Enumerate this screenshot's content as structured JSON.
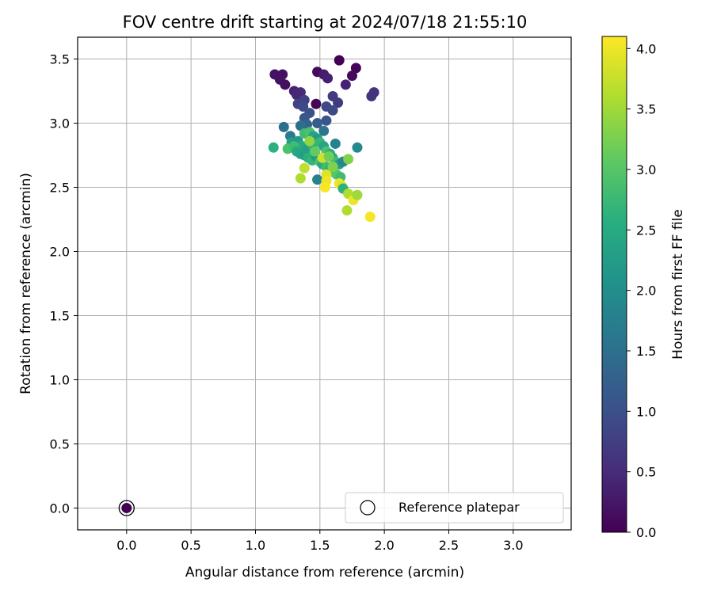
{
  "chart_data": {
    "type": "scatter",
    "title": "FOV centre drift starting at 2024/07/18 21:55:10",
    "xlabel": "Angular distance from reference (arcmin)",
    "ylabel": "Rotation from reference (arcmin)",
    "xlim": [
      -0.38,
      3.45
    ],
    "ylim": [
      -0.17,
      3.67
    ],
    "xticks": [
      "0.0",
      "0.5",
      "1.0",
      "1.5",
      "2.0",
      "2.5",
      "3.0"
    ],
    "yticks": [
      "0.0",
      "0.5",
      "1.0",
      "1.5",
      "2.0",
      "2.5",
      "3.0",
      "3.5"
    ],
    "grid": true,
    "legend": {
      "position": "lower-right",
      "label": "Reference platepar",
      "marker": "hollow-circle"
    },
    "reference": {
      "x": 0.0,
      "y": 0.0,
      "hours": 0.0
    },
    "colorbar": {
      "label": "Hours from first FF file",
      "colormap": "viridis",
      "range": [
        0.0,
        4.1
      ],
      "ticks": [
        "0.0",
        "0.5",
        "1.0",
        "1.5",
        "2.0",
        "2.5",
        "3.0",
        "3.5",
        "4.0"
      ]
    },
    "points": [
      [
        1.65,
        3.49,
        0.0
      ],
      [
        1.78,
        3.43,
        0.05
      ],
      [
        1.75,
        3.37,
        0.1
      ],
      [
        1.48,
        3.4,
        0.1
      ],
      [
        1.21,
        3.38,
        0.15
      ],
      [
        1.15,
        3.38,
        0.2
      ],
      [
        1.19,
        3.34,
        0.2
      ],
      [
        1.23,
        3.3,
        0.15
      ],
      [
        1.53,
        3.38,
        0.3
      ],
      [
        1.56,
        3.35,
        0.35
      ],
      [
        1.7,
        3.3,
        0.4
      ],
      [
        1.3,
        3.25,
        0.4
      ],
      [
        1.35,
        3.24,
        0.5
      ],
      [
        1.32,
        3.22,
        0.45
      ],
      [
        1.92,
        3.24,
        0.6
      ],
      [
        1.9,
        3.21,
        0.6
      ],
      [
        1.6,
        3.21,
        0.7
      ],
      [
        1.64,
        3.16,
        0.7
      ],
      [
        1.47,
        3.15,
        0.05
      ],
      [
        1.33,
        3.15,
        0.8
      ],
      [
        1.38,
        3.18,
        0.8
      ],
      [
        1.37,
        3.13,
        0.9
      ],
      [
        1.55,
        3.13,
        0.9
      ],
      [
        1.6,
        3.1,
        0.9
      ],
      [
        1.42,
        3.08,
        1.0
      ],
      [
        1.38,
        3.04,
        1.1
      ],
      [
        1.55,
        3.02,
        1.1
      ],
      [
        1.48,
        3.0,
        1.2
      ],
      [
        1.4,
        2.99,
        1.3
      ],
      [
        1.22,
        2.97,
        1.5
      ],
      [
        1.35,
        2.98,
        1.5
      ],
      [
        1.53,
        2.94,
        1.6
      ],
      [
        1.27,
        2.9,
        1.7
      ],
      [
        1.62,
        2.84,
        1.8
      ],
      [
        1.79,
        2.81,
        1.9
      ],
      [
        1.14,
        2.81,
        2.6
      ],
      [
        1.28,
        2.85,
        2.3
      ],
      [
        1.33,
        2.86,
        2.2
      ],
      [
        1.36,
        2.82,
        2.5
      ],
      [
        1.4,
        2.8,
        2.3
      ],
      [
        1.44,
        2.83,
        2.6
      ],
      [
        1.38,
        2.92,
        2.8
      ],
      [
        1.42,
        2.93,
        2.9
      ],
      [
        1.45,
        2.9,
        2.4
      ],
      [
        1.48,
        2.88,
        2.2
      ],
      [
        1.5,
        2.85,
        2.7
      ],
      [
        1.53,
        2.82,
        2.4
      ],
      [
        1.55,
        2.78,
        2.9
      ],
      [
        1.58,
        2.76,
        2.6
      ],
      [
        1.6,
        2.73,
        2.5
      ],
      [
        1.62,
        2.7,
        2.8
      ],
      [
        1.65,
        2.68,
        2.3
      ],
      [
        1.68,
        2.7,
        1.9
      ],
      [
        1.25,
        2.8,
        2.9
      ],
      [
        1.3,
        2.82,
        2.8
      ],
      [
        1.32,
        2.78,
        2.5
      ],
      [
        1.35,
        2.76,
        2.4
      ],
      [
        1.38,
        2.75,
        2.3
      ],
      [
        1.41,
        2.73,
        2.6
      ],
      [
        1.44,
        2.71,
        2.7
      ],
      [
        1.47,
        2.74,
        2.2
      ],
      [
        1.5,
        2.7,
        2.9
      ],
      [
        1.52,
        2.68,
        2.5
      ],
      [
        1.55,
        2.66,
        2.8
      ],
      [
        1.58,
        2.64,
        2.6
      ],
      [
        1.6,
        2.62,
        2.9
      ],
      [
        1.63,
        2.6,
        3.0
      ],
      [
        1.66,
        2.58,
        2.8
      ],
      [
        1.42,
        2.86,
        3.4
      ],
      [
        1.52,
        2.73,
        3.8
      ],
      [
        1.72,
        2.72,
        3.3
      ],
      [
        1.38,
        2.65,
        3.7
      ],
      [
        1.35,
        2.57,
        3.6
      ],
      [
        1.48,
        2.56,
        1.8
      ],
      [
        1.55,
        2.6,
        3.9
      ],
      [
        1.55,
        2.55,
        4.0
      ],
      [
        1.54,
        2.5,
        4.05
      ],
      [
        1.65,
        2.53,
        4.0
      ],
      [
        1.67,
        2.51,
        3.9
      ],
      [
        1.68,
        2.49,
        2.6
      ],
      [
        1.72,
        2.45,
        3.6
      ],
      [
        1.76,
        2.4,
        4.0
      ],
      [
        1.79,
        2.44,
        3.5
      ],
      [
        1.71,
        2.32,
        3.6
      ],
      [
        1.89,
        2.27,
        4.05
      ],
      [
        1.57,
        2.74,
        3.2
      ],
      [
        1.46,
        2.78,
        3.1
      ],
      [
        1.6,
        2.66,
        3.3
      ]
    ]
  }
}
